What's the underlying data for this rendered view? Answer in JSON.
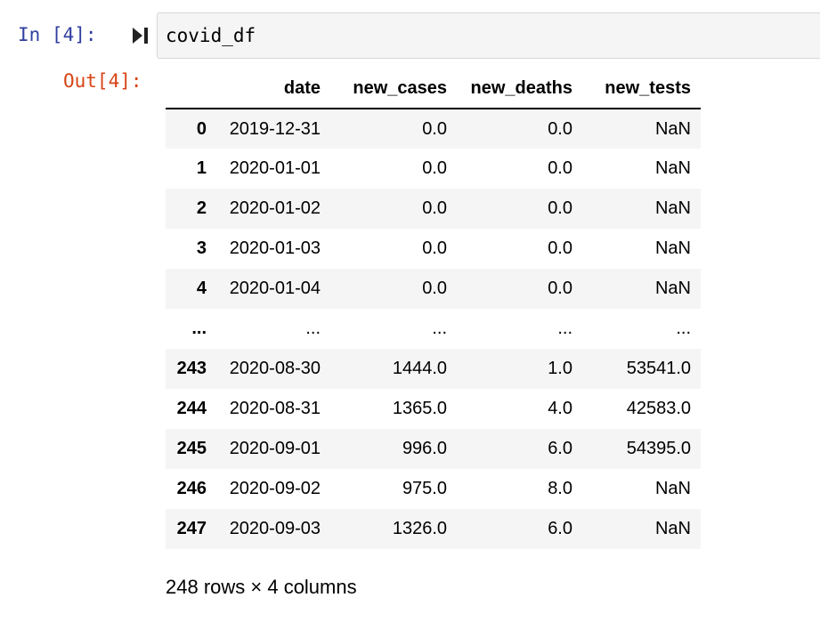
{
  "input_cell": {
    "prompt": "In [4]:",
    "code": "covid_df",
    "run_icon": "run-cell-icon"
  },
  "output_cell": {
    "prompt": "Out[4]:",
    "dataframe": {
      "columns": [
        "date",
        "new_cases",
        "new_deaths",
        "new_tests"
      ],
      "rows": [
        {
          "index": "0",
          "cells": [
            "2019-12-31",
            "0.0",
            "0.0",
            "NaN"
          ]
        },
        {
          "index": "1",
          "cells": [
            "2020-01-01",
            "0.0",
            "0.0",
            "NaN"
          ]
        },
        {
          "index": "2",
          "cells": [
            "2020-01-02",
            "0.0",
            "0.0",
            "NaN"
          ]
        },
        {
          "index": "3",
          "cells": [
            "2020-01-03",
            "0.0",
            "0.0",
            "NaN"
          ]
        },
        {
          "index": "4",
          "cells": [
            "2020-01-04",
            "0.0",
            "0.0",
            "NaN"
          ]
        },
        {
          "index": "...",
          "cells": [
            "...",
            "...",
            "...",
            "..."
          ]
        },
        {
          "index": "243",
          "cells": [
            "2020-08-30",
            "1444.0",
            "1.0",
            "53541.0"
          ]
        },
        {
          "index": "244",
          "cells": [
            "2020-08-31",
            "1365.0",
            "4.0",
            "42583.0"
          ]
        },
        {
          "index": "245",
          "cells": [
            "2020-09-01",
            "996.0",
            "6.0",
            "54395.0"
          ]
        },
        {
          "index": "246",
          "cells": [
            "2020-09-02",
            "975.0",
            "8.0",
            "NaN"
          ]
        },
        {
          "index": "247",
          "cells": [
            "2020-09-03",
            "1326.0",
            "6.0",
            "NaN"
          ]
        }
      ]
    },
    "shape_caption": "248 rows × 4 columns"
  },
  "colors": {
    "in_prompt": "#303f9f",
    "out_prompt": "#d84315",
    "input_background": "#f5f5f5",
    "striped_row": "#f5f5f5"
  }
}
